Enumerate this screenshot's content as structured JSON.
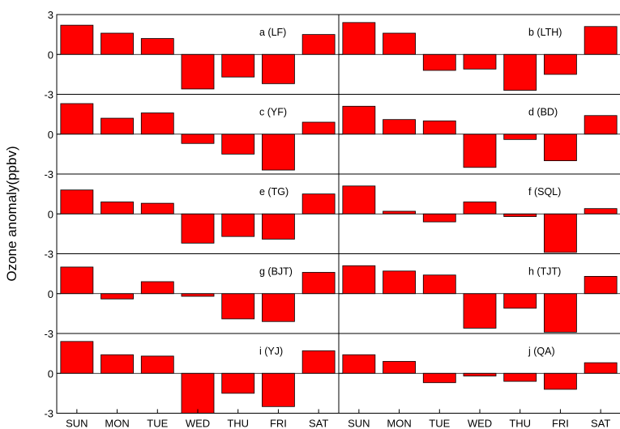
{
  "chart_data": {
    "type": "bar",
    "ylabel": "Ozone anomaly(ppbv)",
    "categories": [
      "SUN",
      "MON",
      "TUE",
      "WED",
      "THU",
      "FRI",
      "SAT"
    ],
    "ylim": [
      -3,
      3
    ],
    "yticks": [
      "3",
      "0",
      "-3"
    ],
    "bar_color": "#ff0000",
    "panels": [
      {
        "label": "a (LF)",
        "values": [
          2.2,
          1.6,
          1.2,
          -2.6,
          -1.7,
          -2.2,
          1.5
        ]
      },
      {
        "label": "b (LTH)",
        "values": [
          2.4,
          1.6,
          -1.2,
          -1.1,
          -2.7,
          -1.5,
          2.1
        ]
      },
      {
        "label": "c (YF)",
        "values": [
          2.3,
          1.2,
          1.6,
          -0.7,
          -1.5,
          -2.7,
          0.9
        ]
      },
      {
        "label": "d (BD)",
        "values": [
          2.1,
          1.1,
          1.0,
          -2.5,
          -0.4,
          -2.0,
          1.4
        ]
      },
      {
        "label": "e (TG)",
        "values": [
          1.8,
          0.9,
          0.8,
          -2.2,
          -1.7,
          -1.9,
          1.5
        ]
      },
      {
        "label": "f (SQL)",
        "values": [
          2.1,
          0.2,
          -0.6,
          0.9,
          -0.2,
          -2.9,
          0.4
        ]
      },
      {
        "label": "g (BJT)",
        "values": [
          2.0,
          -0.4,
          0.9,
          -0.2,
          -1.9,
          -2.1,
          1.6
        ]
      },
      {
        "label": "h (TJT)",
        "values": [
          2.1,
          1.7,
          1.4,
          -2.6,
          -1.1,
          -2.9,
          1.3
        ]
      },
      {
        "label": "i (YJ)",
        "values": [
          2.4,
          1.4,
          1.3,
          -3.0,
          -1.5,
          -2.5,
          1.7
        ]
      },
      {
        "label": "j (QA)",
        "values": [
          1.4,
          0.9,
          -0.7,
          -0.2,
          -0.6,
          -1.2,
          0.8
        ]
      }
    ]
  }
}
